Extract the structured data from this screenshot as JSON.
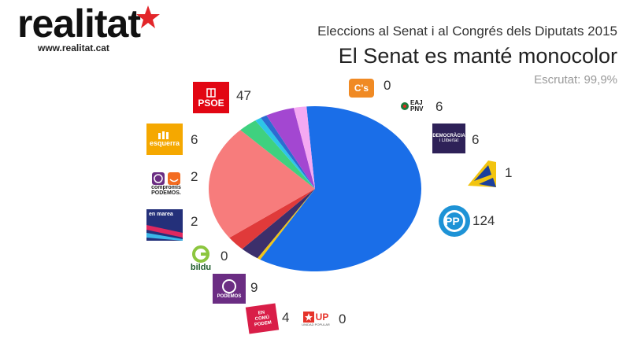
{
  "brand": {
    "name": "realitat",
    "url": "www.realitat.cat",
    "star_color": "#e3262a"
  },
  "header": {
    "subtitle": "Eleccions al Senat i al Congrés dels Diputats 2015",
    "title": "El Senat es manté monocolor",
    "scrutiny": "Escrutat: 99,9%"
  },
  "logos": {
    "psoe": "PSOE",
    "cs": "C's",
    "pnv_1": "EAJ",
    "pnv_2": "PNV",
    "dil_1": "DEMOCRÀCIA",
    "dil_2": "i Llibertat",
    "pp": "PP",
    "esquerra": "esquerra",
    "compromis_1": "compromís",
    "compromis_2": "PODEMOS.",
    "marea": "en marea",
    "bildu": "bildu",
    "podemos": "PODEMOS",
    "ecp_1": "EN",
    "ecp_2": "COMÚ",
    "ecp_3": "PODEM",
    "up": "UP",
    "up_sub": "UNIDAD POPULAR"
  },
  "chart_data": {
    "type": "pie",
    "title": "El Senat es manté monocolor",
    "subtitle": "Eleccions al Senat i al Congrés dels Diputats 2015",
    "series": [
      {
        "party": "PP",
        "seats": 124,
        "label": "124",
        "color": "#1a6ee8"
      },
      {
        "party": "ASG",
        "seats": 1,
        "label": "1",
        "color": "#f0c419"
      },
      {
        "party": "DiL",
        "seats": 6,
        "label": "6",
        "color": "#3c2f6b"
      },
      {
        "party": "EAJ-PNV",
        "seats": 6,
        "label": "6",
        "color": "#e03a3a"
      },
      {
        "party": "C's",
        "seats": 0,
        "label": "0",
        "color": "#f08a24"
      },
      {
        "party": "PSOE",
        "seats": 47,
        "label": "47",
        "color": "#f77c7c"
      },
      {
        "party": "ERC",
        "seats": 6,
        "label": "6",
        "color": "#3fd17f"
      },
      {
        "party": "Compromís-Podemos",
        "seats": 2,
        "label": "2",
        "color": "#2dc6e8"
      },
      {
        "party": "En Marea",
        "seats": 2,
        "label": "2",
        "color": "#2b6cd1"
      },
      {
        "party": "EH Bildu",
        "seats": 0,
        "label": "0",
        "color": "#8cc63f"
      },
      {
        "party": "Podemos",
        "seats": 9,
        "label": "9",
        "color": "#a347d1"
      },
      {
        "party": "En Comú Podem",
        "seats": 4,
        "label": "4",
        "color": "#f5a9f2"
      },
      {
        "party": "Unidad Popular",
        "seats": 0,
        "label": "0",
        "color": "#e5332a"
      }
    ]
  }
}
